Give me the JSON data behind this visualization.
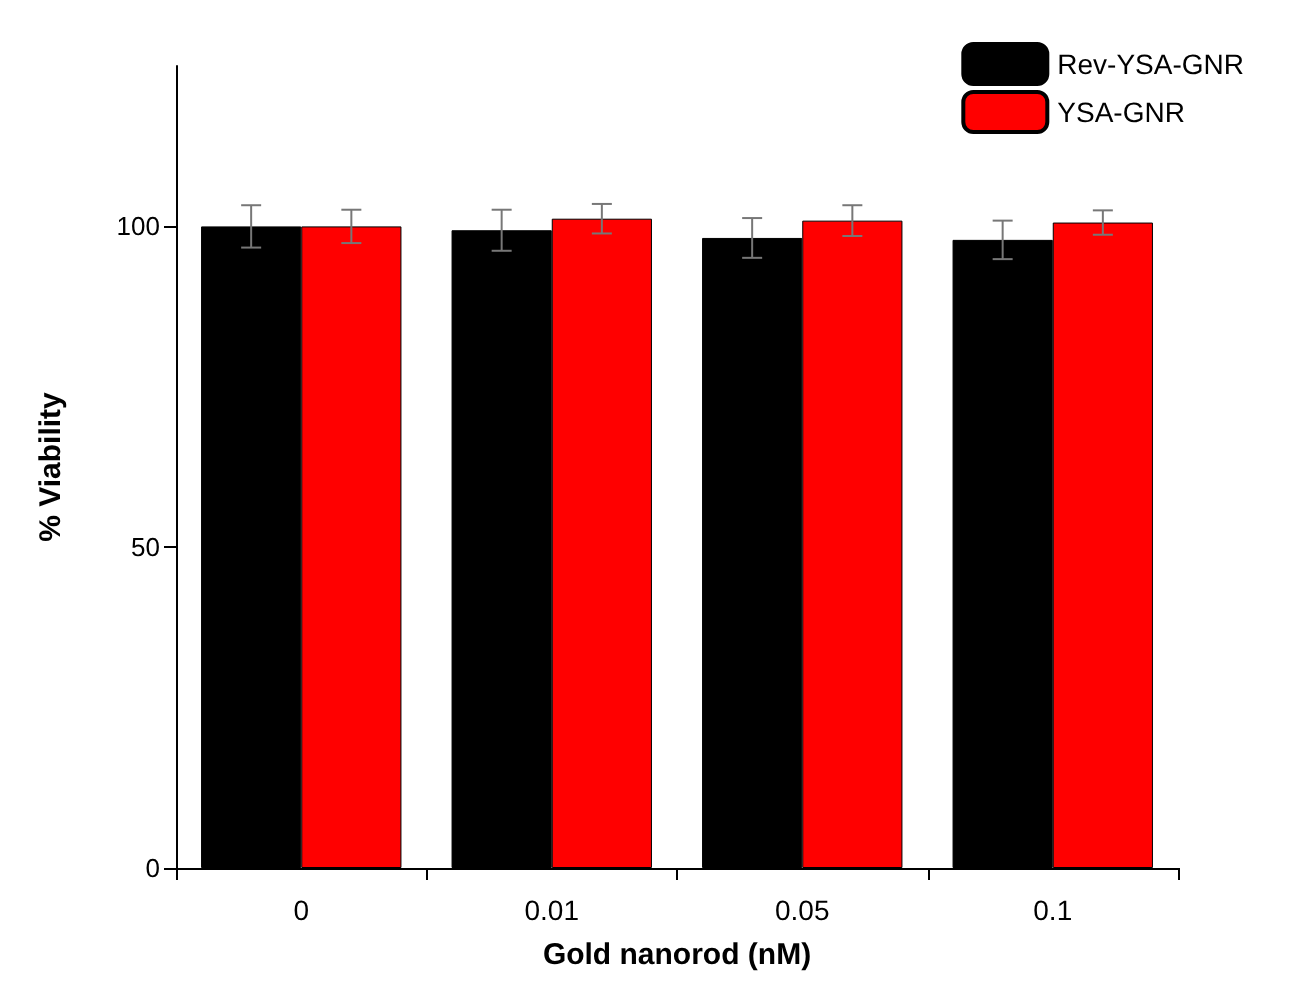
{
  "chart_data": {
    "type": "bar",
    "xlabel": "Gold nanorod (nM)",
    "ylabel": "% Viability",
    "categories": [
      "0",
      "0.01",
      "0.05",
      "0.1"
    ],
    "series": [
      {
        "name": "Rev-YSA-GNR",
        "color": "#000000",
        "values": [
          100,
          99.4,
          98.2,
          97.9
        ],
        "errors": [
          3.3,
          3.2,
          3.1,
          3
        ]
      },
      {
        "name": "YSA-GNR",
        "color": "#ff0000",
        "values": [
          100,
          101.2,
          100.9,
          100.6
        ],
        "errors": [
          2.6,
          2.3,
          2.4,
          1.9
        ]
      }
    ],
    "ylim": [
      0,
      125
    ],
    "yticks": [
      0,
      50,
      100
    ],
    "grid": false,
    "legend": "top right"
  }
}
